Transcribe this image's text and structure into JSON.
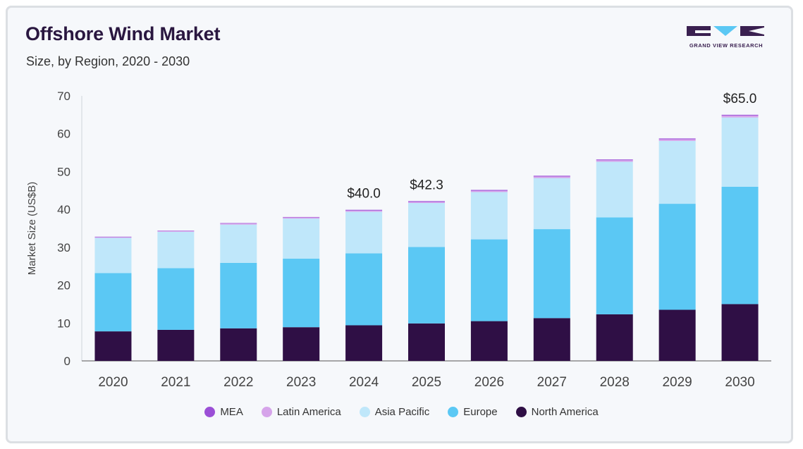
{
  "title": "Offshore Wind Market",
  "subtitle": "Size, by Region, 2020 - 2030",
  "brand": {
    "name": "GRAND VIEW RESEARCH"
  },
  "colors": {
    "MEA": "#9b4fd6",
    "Latin America": "#d6a4ea",
    "Asia Pacific": "#bfe7fa",
    "Europe": "#5bc8f4",
    "North America": "#2f0f45"
  },
  "chart_data": {
    "type": "bar",
    "stacked": true,
    "ylabel": "Market Size (US$B)",
    "xlabel": "",
    "ylim": [
      0,
      70
    ],
    "yticks": [
      0,
      10,
      20,
      30,
      40,
      50,
      60,
      70
    ],
    "grid": false,
    "legend_position": "bottom",
    "categories": [
      "2020",
      "2021",
      "2022",
      "2023",
      "2024",
      "2025",
      "2026",
      "2027",
      "2028",
      "2029",
      "2030"
    ],
    "series": [
      {
        "name": "North America",
        "values": [
          7.8,
          8.2,
          8.6,
          8.9,
          9.4,
          9.9,
          10.5,
          11.3,
          12.3,
          13.5,
          15.0
        ]
      },
      {
        "name": "Europe",
        "values": [
          15.4,
          16.3,
          17.3,
          18.1,
          19.0,
          20.2,
          21.6,
          23.5,
          25.6,
          28.0,
          31.0
        ]
      },
      {
        "name": "Asia Pacific",
        "values": [
          9.3,
          9.6,
          10.1,
          10.6,
          11.0,
          11.6,
          12.5,
          13.5,
          14.7,
          16.6,
          18.3
        ]
      },
      {
        "name": "Latin America",
        "values": [
          0.2,
          0.2,
          0.3,
          0.3,
          0.3,
          0.3,
          0.35,
          0.4,
          0.4,
          0.45,
          0.5
        ]
      },
      {
        "name": "MEA",
        "values": [
          0.1,
          0.1,
          0.1,
          0.1,
          0.2,
          0.2,
          0.2,
          0.2,
          0.2,
          0.2,
          0.2
        ]
      }
    ],
    "annotations": [
      {
        "category": "2024",
        "label": "$40.0"
      },
      {
        "category": "2025",
        "label": "$42.3"
      },
      {
        "category": "2030",
        "label": "$65.0"
      }
    ]
  }
}
